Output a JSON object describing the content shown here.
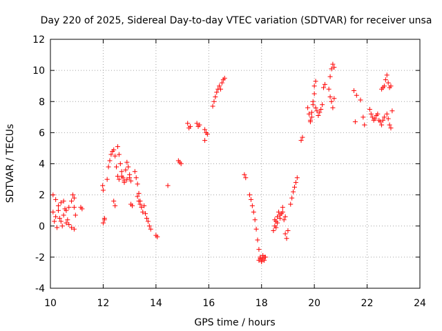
{
  "chart_data": {
    "type": "scatter",
    "title": "Day 220 of 2025, Sidereal Day-to-day VTEC variation (SDTVAR) for receiver unsa",
    "xlabel": "GPS time / hours",
    "ylabel": "SDTVAR / TECUs",
    "xlim": [
      10,
      24
    ],
    "ylim": [
      -4,
      12
    ],
    "xticks": [
      10,
      12,
      14,
      16,
      18,
      20,
      22,
      24
    ],
    "yticks": [
      -4,
      -2,
      0,
      2,
      4,
      6,
      8,
      10,
      12
    ],
    "grid": true,
    "marker": "plus",
    "color": "#ff0000",
    "series": [
      {
        "name": "SDTVAR",
        "segments": [
          {
            "x": [
              10.1,
              10.2,
              10.3,
              10.4,
              10.5,
              10.6,
              10.7,
              10.8,
              10.9
            ],
            "y": [
              2.0,
              1.7,
              1.3,
              1.5,
              1.6,
              1.0,
              1.2,
              1.6,
              1.8
            ]
          },
          {
            "x": [
              10.1,
              10.2,
              10.3,
              10.4,
              10.5,
              10.6,
              10.7,
              10.8,
              10.9
            ],
            "y": [
              0.9,
              0.6,
              1.0,
              0.3,
              0.7,
              0.2,
              0.1,
              -0.1,
              -0.2
            ]
          },
          {
            "x": [
              10.15,
              10.25,
              10.35,
              10.45,
              10.55,
              10.65
            ],
            "y": [
              0.3,
              -0.1,
              0.5,
              0.0,
              1.1,
              0.4
            ]
          },
          {
            "x": [
              10.85,
              10.9,
              10.95
            ],
            "y": [
              2.0,
              1.2,
              0.7
            ]
          },
          {
            "x": [
              11.15,
              11.2
            ],
            "y": [
              1.2,
              1.1
            ]
          },
          {
            "x": [
              11.98,
              12.0,
              12.05
            ],
            "y": [
              2.6,
              2.3,
              0.4
            ]
          },
          {
            "x": [
              12.0,
              12.05
            ],
            "y": [
              0.2,
              0.5
            ]
          },
          {
            "x": [
              12.15,
              12.2,
              12.25,
              12.3,
              12.35,
              12.4,
              12.45,
              12.5,
              12.55
            ],
            "y": [
              3.0,
              3.8,
              4.2,
              4.6,
              4.8,
              4.9,
              4.5,
              3.8,
              3.2
            ]
          },
          {
            "x": [
              12.4,
              12.45
            ],
            "y": [
              1.6,
              1.3
            ]
          },
          {
            "x": [
              12.55,
              12.6,
              12.65,
              12.7,
              12.75,
              12.8,
              12.85,
              12.9,
              12.95,
              13.0,
              13.05
            ],
            "y": [
              5.1,
              4.6,
              4.0,
              3.5,
              3.1,
              2.9,
              3.6,
              4.1,
              3.8,
              3.3,
              2.9
            ]
          },
          {
            "x": [
              12.6,
              12.7,
              12.8,
              12.9,
              13.0
            ],
            "y": [
              3.0,
              3.2,
              2.8,
              3.0,
              3.1
            ]
          },
          {
            "x": [
              13.05,
              13.1
            ],
            "y": [
              1.4,
              1.3
            ]
          },
          {
            "x": [
              13.2,
              13.25,
              13.3,
              13.35,
              13.4,
              13.45,
              13.5,
              13.55,
              13.6,
              13.65,
              13.7,
              13.75,
              13.8
            ],
            "y": [
              3.5,
              3.1,
              2.7,
              2.1,
              1.6,
              1.2,
              0.9,
              1.3,
              0.8,
              0.5,
              0.3,
              0.0,
              -0.2
            ]
          },
          {
            "x": [
              13.3,
              13.35,
              13.4
            ],
            "y": [
              1.9,
              1.6,
              1.4
            ]
          },
          {
            "x": [
              14.0,
              14.05
            ],
            "y": [
              -0.6,
              -0.7
            ]
          },
          {
            "x": [
              14.45
            ],
            "y": [
              2.6
            ]
          },
          {
            "x": [
              14.85,
              14.9,
              14.95
            ],
            "y": [
              4.2,
              4.1,
              4.0
            ]
          },
          {
            "x": [
              15.2,
              15.25,
              15.3
            ],
            "y": [
              6.6,
              6.3,
              6.4
            ]
          },
          {
            "x": [
              15.55,
              15.6,
              15.65
            ],
            "y": [
              6.6,
              6.4,
              6.5
            ]
          },
          {
            "x": [
              15.85,
              15.9,
              15.95,
              15.85
            ],
            "y": [
              6.2,
              6.0,
              5.9,
              5.5
            ]
          },
          {
            "x": [
              16.15,
              16.2,
              16.25,
              16.3,
              16.35,
              16.4,
              16.45,
              16.5,
              16.55,
              16.6
            ],
            "y": [
              7.7,
              8.0,
              8.3,
              8.6,
              8.8,
              9.0,
              8.8,
              9.2,
              9.4,
              9.5
            ]
          },
          {
            "x": [
              17.35,
              17.4
            ],
            "y": [
              3.3,
              3.1
            ]
          },
          {
            "x": [
              17.55,
              17.6,
              17.65,
              17.7,
              17.75,
              17.8,
              17.85,
              17.9,
              17.95,
              18.0,
              18.05,
              18.1
            ],
            "y": [
              2.0,
              1.7,
              1.3,
              0.9,
              0.4,
              -0.2,
              -0.9,
              -1.5,
              -2.0,
              -2.2,
              -2.1,
              -2.0
            ]
          },
          {
            "x": [
              17.9,
              17.95,
              18.0,
              18.05,
              18.1,
              18.15
            ],
            "y": [
              -2.2,
              -2.1,
              -2.3,
              -1.9,
              -2.2,
              -2.0
            ]
          },
          {
            "x": [
              18.45,
              18.5,
              18.55,
              18.6,
              18.65,
              18.7,
              18.75,
              18.8,
              18.85,
              18.9,
              18.95,
              19.0
            ],
            "y": [
              -0.3,
              0.0,
              0.3,
              0.6,
              0.9,
              0.5,
              0.8,
              1.2,
              0.4,
              -0.5,
              -0.8,
              -0.3
            ]
          },
          {
            "x": [
              18.5,
              18.55,
              18.6,
              18.7,
              18.8,
              18.9
            ],
            "y": [
              0.4,
              -0.1,
              0.2,
              0.7,
              0.9,
              0.6
            ]
          },
          {
            "x": [
              19.1,
              19.15,
              19.2,
              19.25,
              19.3,
              19.35
            ],
            "y": [
              1.4,
              1.8,
              2.2,
              2.5,
              2.8,
              3.1
            ]
          },
          {
            "x": [
              19.5,
              19.55
            ],
            "y": [
              5.5,
              5.7
            ]
          },
          {
            "x": [
              19.75,
              19.8,
              19.85,
              19.9,
              19.95,
              20.0,
              20.05
            ],
            "y": [
              7.6,
              7.2,
              6.8,
              7.3,
              8.0,
              9.0,
              9.3
            ]
          },
          {
            "x": [
              19.85,
              19.9,
              19.95,
              20.0,
              20.05
            ],
            "y": [
              6.7,
              7.0,
              7.8,
              8.5,
              7.6
            ]
          },
          {
            "x": [
              20.1,
              20.15,
              20.2,
              20.25,
              20.3,
              20.35,
              20.4
            ],
            "y": [
              7.4,
              7.1,
              7.3,
              7.5,
              7.8,
              8.9,
              9.1
            ]
          },
          {
            "x": [
              20.55,
              20.6,
              20.65,
              20.7,
              20.75
            ],
            "y": [
              8.8,
              9.6,
              10.1,
              10.4,
              10.2
            ]
          },
          {
            "x": [
              20.6,
              20.65,
              20.7,
              20.75
            ],
            "y": [
              8.3,
              8.0,
              7.6,
              8.2
            ]
          },
          {
            "x": [
              21.5,
              21.55,
              21.6,
              21.75
            ],
            "y": [
              8.7,
              6.7,
              8.4,
              8.1
            ]
          },
          {
            "x": [
              21.85,
              21.9
            ],
            "y": [
              7.0,
              6.5
            ]
          },
          {
            "x": [
              22.1,
              22.15,
              22.2,
              22.25,
              22.3,
              22.35,
              22.4,
              22.45,
              22.5,
              22.55,
              22.6,
              22.65
            ],
            "y": [
              7.5,
              7.2,
              7.0,
              6.8,
              6.9,
              7.1,
              7.2,
              6.8,
              6.7,
              6.5,
              6.8,
              7.0
            ]
          },
          {
            "x": [
              22.55,
              22.6,
              22.65,
              22.7,
              22.75,
              22.8,
              22.85,
              22.9
            ],
            "y": [
              8.8,
              8.9,
              9.0,
              9.4,
              9.7,
              9.2,
              8.9,
              9.0
            ]
          },
          {
            "x": [
              22.75,
              22.8,
              22.85,
              22.9,
              22.95
            ],
            "y": [
              7.2,
              6.9,
              6.5,
              6.3,
              7.4
            ]
          }
        ]
      }
    ]
  }
}
